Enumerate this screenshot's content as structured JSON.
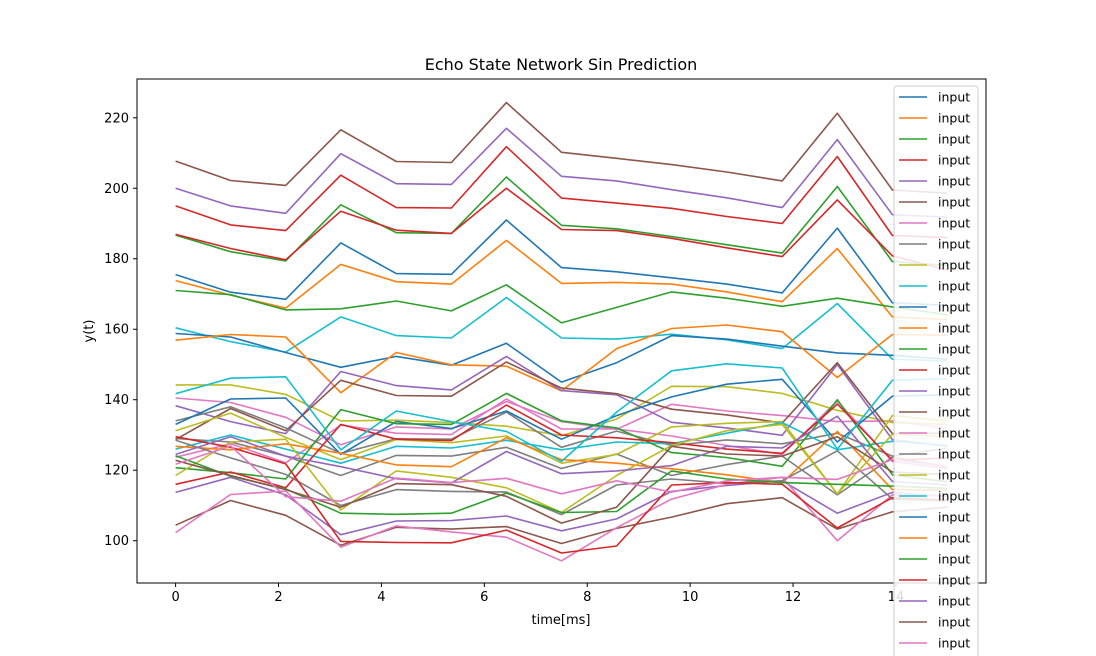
{
  "chart_data": {
    "type": "line",
    "title": "Echo State Network Sin Prediction",
    "xlabel": "time[ms]",
    "ylabel": "y(t)",
    "xlim": [
      -0.75,
      15.75
    ],
    "ylim": [
      88,
      231
    ],
    "xticks": [
      0,
      2,
      4,
      6,
      8,
      10,
      12,
      14
    ],
    "xtick_labels": [
      "0",
      "2",
      "4",
      "6",
      "8",
      "10",
      "12",
      "14"
    ],
    "yticks": [
      100,
      120,
      140,
      160,
      180,
      200,
      220
    ],
    "ytick_labels": [
      "100",
      "120",
      "140",
      "160",
      "180",
      "200",
      "220"
    ],
    "grid": false,
    "legend_position": "upper right",
    "x": [
      0,
      1.07,
      2.14,
      3.21,
      4.29,
      5.36,
      6.43,
      7.5,
      8.57,
      9.64,
      10.71,
      11.79,
      12.86,
      13.93,
      15
    ],
    "series": [
      {
        "name": "input",
        "color": "#1f77b4",
        "values": [
          175.5,
          170.5,
          168.5,
          184.5,
          175.8,
          175.6,
          191.0,
          177.5,
          176.3,
          174.6,
          172.8,
          170.3,
          188.7,
          167.5,
          166.8
        ]
      },
      {
        "name": "input",
        "color": "#ff7f0e",
        "values": [
          173.8,
          169.7,
          166.0,
          178.4,
          173.5,
          172.8,
          185.2,
          173.0,
          173.3,
          172.8,
          170.6,
          167.8,
          182.9,
          163.5,
          162.7
        ]
      },
      {
        "name": "input",
        "color": "#2ca02c",
        "values": [
          171.0,
          169.8,
          165.5,
          165.8,
          168.0,
          165.2,
          172.6,
          161.8,
          166.2,
          170.6,
          168.8,
          166.5,
          168.8,
          166.3,
          164.1
        ]
      },
      {
        "name": "input",
        "color": "#d62728",
        "values": [
          195.0,
          189.6,
          188.0,
          203.7,
          194.5,
          194.4,
          211.8,
          197.2,
          195.8,
          194.3,
          192.0,
          190.0,
          209.0,
          186.6,
          186.0
        ]
      },
      {
        "name": "input",
        "color": "#9467bd",
        "values": [
          200.0,
          195.0,
          192.9,
          209.8,
          201.3,
          201.1,
          217.0,
          203.4,
          202.1,
          199.6,
          197.3,
          194.5,
          213.8,
          192.5,
          191.8
        ]
      },
      {
        "name": "input",
        "color": "#8c564b",
        "values": [
          207.7,
          202.2,
          200.8,
          216.6,
          207.6,
          207.3,
          224.3,
          210.2,
          208.5,
          206.7,
          204.6,
          202.1,
          221.3,
          199.5,
          198.6
        ]
      },
      {
        "name": "input",
        "color": "#e377c2",
        "values": [
          140.5,
          139.2,
          135.0,
          127.2,
          132.3,
          131.7,
          139.5,
          133.8,
          131.6,
          138.7,
          136.8,
          135.5,
          133.8,
          134.0,
          131.8
        ]
      },
      {
        "name": "input",
        "color": "#7f7f7f",
        "values": [
          129.0,
          128.0,
          124.0,
          118.5,
          124.2,
          124.0,
          126.5,
          120.5,
          124.6,
          118.5,
          121.6,
          124.0,
          113.0,
          123.7,
          121.0
        ]
      },
      {
        "name": "input",
        "color": "#bcbd22",
        "values": [
          144.2,
          144.2,
          141.5,
          134.0,
          134.2,
          133.5,
          132.5,
          129.8,
          134.5,
          143.8,
          143.7,
          141.8,
          137.0,
          133.5,
          133.0
        ]
      },
      {
        "name": "input",
        "color": "#17becf",
        "values": [
          160.4,
          156.5,
          153.5,
          163.5,
          158.2,
          157.5,
          169.0,
          157.5,
          157.2,
          158.6,
          157.0,
          154.5,
          167.3,
          151.5,
          151.0
        ]
      },
      {
        "name": "input",
        "color": "#1f77b4",
        "values": [
          158.8,
          157.8,
          153.4,
          149.2,
          152.3,
          149.8,
          156.0,
          145.0,
          150.5,
          158.2,
          157.2,
          155.2,
          153.3,
          152.6,
          151.5
        ]
      },
      {
        "name": "input",
        "color": "#ff7f0e",
        "values": [
          156.9,
          158.5,
          157.8,
          142.0,
          153.4,
          149.9,
          149.5,
          142.5,
          154.5,
          160.2,
          161.2,
          159.3,
          146.3,
          158.5,
          158.3
        ]
      },
      {
        "name": "input",
        "color": "#2ca02c",
        "values": [
          186.7,
          182.0,
          179.4,
          195.3,
          187.4,
          187.2,
          203.2,
          189.5,
          188.5,
          186.3,
          184.0,
          181.6,
          200.5,
          179.2,
          178.1
        ]
      },
      {
        "name": "input",
        "color": "#d62728",
        "values": [
          186.9,
          182.9,
          179.7,
          193.5,
          188.1,
          187.2,
          200.0,
          188.3,
          188.0,
          185.8,
          183.1,
          180.6,
          196.7,
          180.8,
          176.8
        ]
      },
      {
        "name": "input",
        "color": "#9467bd",
        "values": [
          138.3,
          133.8,
          130.4,
          148.0,
          144.0,
          142.8,
          152.3,
          142.6,
          141.4,
          133.6,
          132.0,
          129.9,
          150.0,
          128.7,
          126.8
        ]
      },
      {
        "name": "input",
        "color": "#8c564b",
        "values": [
          128.7,
          137.5,
          131.2,
          145.5,
          141.2,
          141.0,
          150.7,
          143.3,
          141.7,
          137.3,
          135.7,
          133.4,
          150.5,
          130.4,
          130.5
        ]
      },
      {
        "name": "input",
        "color": "#e377c2",
        "values": [
          123.7,
          127.5,
          122.1,
          132.8,
          130.5,
          130.1,
          140.2,
          131.7,
          131.7,
          129.7,
          127.0,
          124.5,
          139.6,
          122.5,
          120.4
        ]
      },
      {
        "name": "input",
        "color": "#7f7f7f",
        "values": [
          134.0,
          138.0,
          132.0,
          124.8,
          128.9,
          128.8,
          136.5,
          126.5,
          131.1,
          127.0,
          128.6,
          127.5,
          130.5,
          124.0,
          126.3
        ]
      },
      {
        "name": "input",
        "color": "#bcbd22",
        "values": [
          131.2,
          136.2,
          129.3,
          123.0,
          128.7,
          127.8,
          129.7,
          122.0,
          124.5,
          132.3,
          133.3,
          133.8,
          113.3,
          135.5,
          134.0
        ]
      },
      {
        "name": "input",
        "color": "#17becf",
        "values": [
          126.0,
          130.0,
          126.0,
          122.0,
          126.8,
          126.3,
          128.5,
          125.8,
          128.0,
          127.5,
          130.5,
          133.5,
          125.8,
          128.2,
          127.0
        ]
      },
      {
        "name": "input",
        "color": "#1f77b4",
        "values": [
          133.0,
          140.2,
          140.5,
          124.5,
          133.8,
          131.8,
          136.8,
          128.8,
          135.5,
          140.8,
          144.4,
          145.8,
          128.0,
          141.0,
          141.4
        ]
      },
      {
        "name": "input",
        "color": "#ff7f0e",
        "values": [
          126.8,
          125.8,
          127.5,
          124.8,
          121.5,
          121.0,
          129.2,
          123.0,
          122.0,
          120.4,
          118.7,
          116.5,
          131.0,
          114.5,
          114.3
        ]
      },
      {
        "name": "input",
        "color": "#2ca02c",
        "values": [
          120.7,
          119.3,
          117.5,
          137.2,
          133.2,
          133.0,
          141.8,
          134.0,
          132.0,
          125.0,
          123.6,
          121.1,
          140.0,
          118.7,
          116.7
        ]
      },
      {
        "name": "input",
        "color": "#d62728",
        "values": [
          116.0,
          119.5,
          115.0,
          133.0,
          128.8,
          128.4,
          138.5,
          130.0,
          129.2,
          127.8,
          126.0,
          124.8,
          138.8,
          122.8,
          123.5
        ]
      },
      {
        "name": "input",
        "color": "#9467bd",
        "values": [
          113.7,
          118.0,
          113.0,
          101.7,
          105.6,
          105.7,
          107.0,
          102.8,
          106.2,
          114.0,
          115.7,
          117.0,
          107.8,
          113.7,
          112.5
        ]
      },
      {
        "name": "input",
        "color": "#8c564b",
        "values": [
          104.4,
          111.4,
          107.2,
          98.7,
          103.8,
          103.3,
          104.0,
          99.2,
          103.5,
          106.7,
          110.5,
          112.2,
          103.3,
          108.2,
          109.5
        ]
      },
      {
        "name": "input",
        "color": "#e377c2",
        "values": [
          102.3,
          113.1,
          114.1,
          98.2,
          104.2,
          102.5,
          101.0,
          94.3,
          103.7,
          111.8,
          116.0,
          118.0,
          100.0,
          113.0,
          112.7
        ]
      },
      {
        "name": "input",
        "color": "#7f7f7f",
        "values": [
          128.5,
          123.5,
          118.8,
          110.0,
          114.5,
          114.0,
          113.8,
          107.4,
          115.8,
          117.5,
          116.3,
          117.0,
          125.5,
          111.8,
          111.2
        ]
      },
      {
        "name": "input",
        "color": "#bcbd22",
        "values": [
          118.5,
          128.0,
          128.8,
          108.7,
          119.8,
          118.0,
          115.0,
          108.0,
          118.5,
          127.0,
          131.2,
          133.0,
          113.3,
          130.2,
          129.5
        ]
      },
      {
        "name": "input",
        "color": "#17becf",
        "values": [
          141.7,
          146.1,
          146.5,
          125.8,
          136.8,
          133.8,
          131.0,
          122.5,
          136.5,
          148.2,
          150.2,
          149.0,
          126.0,
          145.5,
          146.0
        ]
      },
      {
        "name": "input",
        "color": "#2ca02c",
        "values": [
          124.1,
          118.3,
          114.7,
          107.8,
          107.5,
          107.8,
          113.5,
          108.0,
          108.3,
          119.8,
          117.5,
          116.5,
          116.0,
          115.5,
          114.8
        ]
      },
      {
        "name": "input",
        "color": "#d62728",
        "values": [
          129.5,
          126.5,
          121.8,
          99.8,
          99.5,
          99.4,
          103.0,
          96.5,
          98.5,
          115.8,
          116.5,
          116.0,
          103.6,
          112.2,
          111.5
        ]
      },
      {
        "name": "input",
        "color": "#9467bd",
        "values": [
          124.5,
          129.5,
          124.0,
          121.0,
          117.6,
          116.4,
          125.3,
          119.0,
          119.8,
          121.3,
          126.8,
          126.3,
          135.3,
          116.8,
          115.8
        ]
      },
      {
        "name": "input",
        "color": "#8c564b",
        "values": [
          122.8,
          118.5,
          114.5,
          109.5,
          116.2,
          115.9,
          112.6,
          105.0,
          109.5,
          126.8,
          124.6,
          124.0,
          129.5,
          119.5,
          118.8
        ]
      },
      {
        "name": "input",
        "color": "#e377c2",
        "values": [
          121.7,
          126.9,
          112.5,
          111.2,
          117.8,
          116.5,
          117.7,
          113.3,
          117.0,
          113.8,
          117.0,
          118.0,
          117.4,
          123.0,
          121.0
        ]
      }
    ],
    "legend_visible_count": 27
  }
}
